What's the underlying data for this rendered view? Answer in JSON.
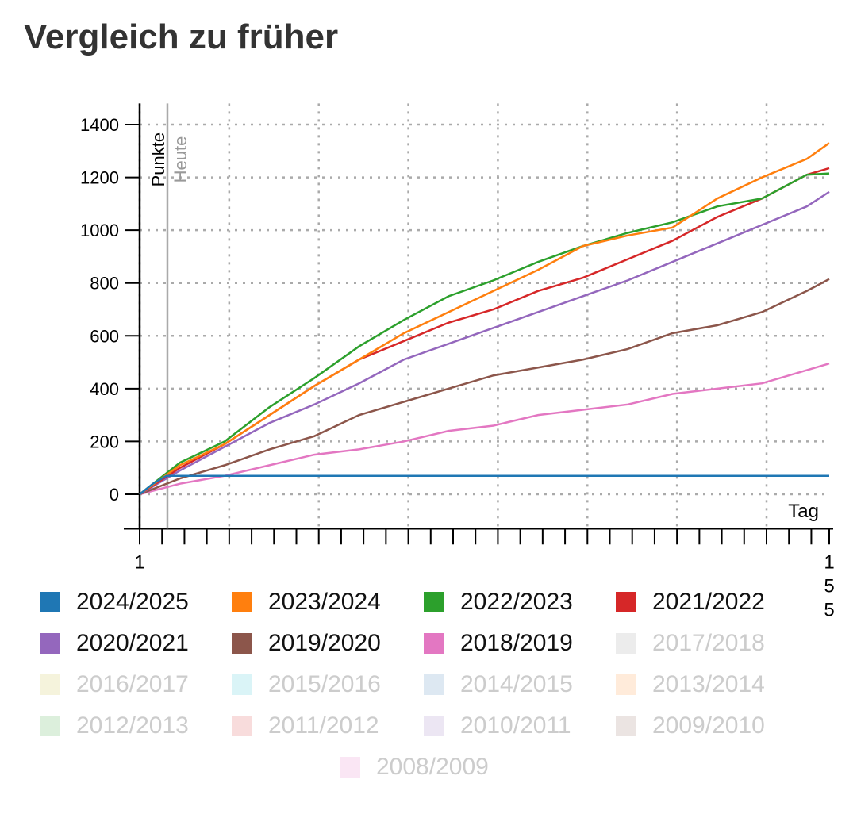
{
  "title": "Vergleich zu früher",
  "chart_data": {
    "type": "line",
    "xlabel": "Tag",
    "ylabel": "Punkte",
    "marker_label": "Heute",
    "marker_day": 7.2,
    "xlim": [
      1,
      155
    ],
    "ylim": [
      -130,
      1480
    ],
    "x_tick_labels": [
      "1",
      "155"
    ],
    "y_ticks": [
      0,
      200,
      400,
      600,
      800,
      1000,
      1200,
      1400
    ],
    "grid": true,
    "series": [
      {
        "name": "2024/2025",
        "color": "#1f77b4",
        "active": true,
        "x": [
          1,
          4,
          7,
          155
        ],
        "y": [
          0,
          40,
          70,
          70
        ]
      },
      {
        "name": "2023/2024",
        "color": "#ff7f0e",
        "active": true,
        "x": [
          1,
          10,
          20,
          30,
          40,
          50,
          60,
          70,
          80,
          90,
          100,
          110,
          120,
          130,
          140,
          150,
          155
        ],
        "y": [
          0,
          110,
          190,
          300,
          410,
          510,
          610,
          690,
          770,
          850,
          940,
          980,
          1010,
          1120,
          1200,
          1270,
          1330
        ]
      },
      {
        "name": "2022/2023",
        "color": "#2ca02c",
        "active": true,
        "x": [
          1,
          10,
          20,
          30,
          40,
          50,
          60,
          70,
          80,
          90,
          100,
          110,
          120,
          130,
          140,
          150,
          155
        ],
        "y": [
          0,
          120,
          200,
          330,
          440,
          560,
          660,
          750,
          810,
          880,
          940,
          990,
          1030,
          1090,
          1120,
          1210,
          1215
        ]
      },
      {
        "name": "2021/2022",
        "color": "#d62728",
        "active": true,
        "x": [
          1,
          10,
          20,
          30,
          40,
          50,
          60,
          70,
          80,
          90,
          100,
          110,
          120,
          130,
          140,
          150,
          155
        ],
        "y": [
          0,
          100,
          190,
          300,
          410,
          510,
          580,
          650,
          700,
          770,
          820,
          890,
          960,
          1050,
          1120,
          1210,
          1235
        ]
      },
      {
        "name": "2020/2021",
        "color": "#9467bd",
        "active": true,
        "x": [
          1,
          10,
          20,
          30,
          40,
          50,
          60,
          70,
          80,
          90,
          100,
          110,
          120,
          130,
          140,
          150,
          155
        ],
        "y": [
          0,
          90,
          180,
          270,
          340,
          420,
          510,
          570,
          630,
          690,
          750,
          810,
          880,
          950,
          1020,
          1090,
          1145
        ]
      },
      {
        "name": "2019/2020",
        "color": "#8c564b",
        "active": true,
        "x": [
          1,
          10,
          20,
          30,
          40,
          50,
          60,
          70,
          80,
          90,
          100,
          110,
          120,
          130,
          140,
          150,
          155
        ],
        "y": [
          0,
          60,
          110,
          170,
          220,
          300,
          350,
          400,
          450,
          480,
          510,
          550,
          610,
          640,
          690,
          770,
          815
        ]
      },
      {
        "name": "2018/2019",
        "color": "#e377c2",
        "active": true,
        "x": [
          1,
          10,
          20,
          30,
          40,
          50,
          60,
          70,
          80,
          90,
          100,
          110,
          120,
          130,
          140,
          150,
          155
        ],
        "y": [
          0,
          40,
          70,
          110,
          150,
          170,
          200,
          240,
          260,
          300,
          320,
          340,
          380,
          400,
          420,
          470,
          495
        ]
      },
      {
        "name": "2017/2018",
        "color": "#ececec",
        "active": false
      },
      {
        "name": "2016/2017",
        "color": "#f5f3dc",
        "active": false
      },
      {
        "name": "2015/2016",
        "color": "#daf4f7",
        "active": false
      },
      {
        "name": "2014/2015",
        "color": "#dde8f2",
        "active": false
      },
      {
        "name": "2013/2014",
        "color": "#ffebda",
        "active": false
      },
      {
        "name": "2012/2013",
        "color": "#dcefdc",
        "active": false
      },
      {
        "name": "2011/2012",
        "color": "#f8dcdc",
        "active": false
      },
      {
        "name": "2010/2011",
        "color": "#ece6f3",
        "active": false
      },
      {
        "name": "2009/2010",
        "color": "#ebe4e2",
        "active": false
      },
      {
        "name": "2008/2009",
        "color": "#fae6f4",
        "active": false
      }
    ]
  }
}
